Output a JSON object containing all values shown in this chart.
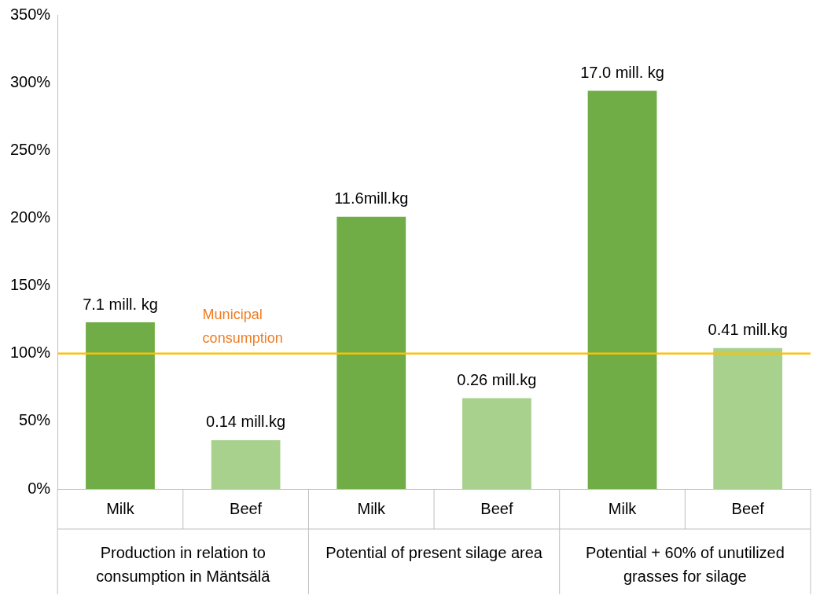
{
  "chart_data": {
    "type": "bar",
    "categories": [
      "Milk",
      "Beef",
      "Milk",
      "Beef",
      "Milk",
      "Beef"
    ],
    "values": [
      123,
      36,
      201,
      67,
      294,
      104
    ],
    "colors": [
      "#70ad47",
      "#a9d18e",
      "#70ad47",
      "#a9d18e",
      "#70ad47",
      "#a9d18e"
    ],
    "ylim": [
      0,
      350
    ],
    "yticks": [
      {
        "value": 0,
        "label": "0%"
      },
      {
        "value": 50,
        "label": "50%"
      },
      {
        "value": 100,
        "label": "100%"
      },
      {
        "value": 150,
        "label": "150%"
      },
      {
        "value": 200,
        "label": "200%"
      },
      {
        "value": 250,
        "label": "250%"
      },
      {
        "value": 300,
        "label": "300%"
      },
      {
        "value": 350,
        "label": "350%"
      }
    ],
    "ref_lines": [
      {
        "axis": "y",
        "value": 100,
        "label": "Municipal consumption",
        "color": "#ffc000"
      }
    ],
    "annotations": [
      "7.1 mill. kg",
      "0.14 mill.kg",
      "11.6mill.kg",
      "0.26 mill.kg",
      "17.0 mill. kg",
      "0.41 mill.kg",
      "Production in relation to consumption in Mäntsälä",
      "Potential of present silage area",
      "Potential + 60% of unutilized grasses for silage"
    ],
    "grid": false,
    "legend": false
  }
}
